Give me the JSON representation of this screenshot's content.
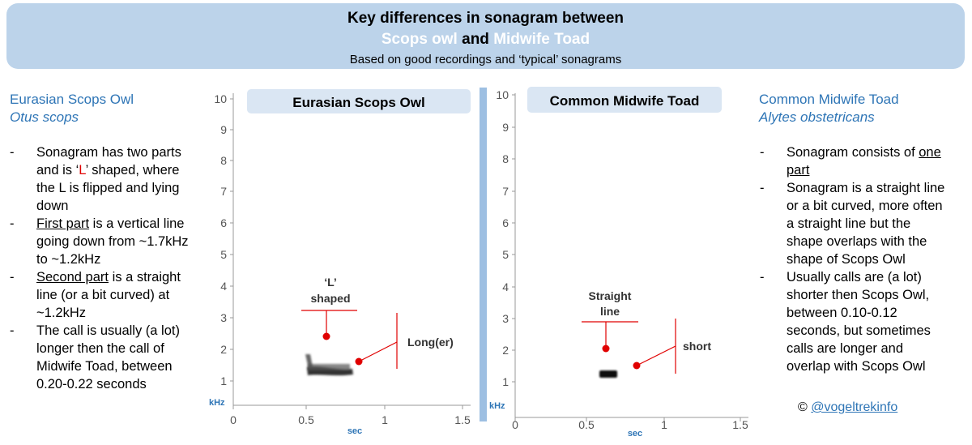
{
  "header": {
    "title": "Key differences in sonagram between",
    "species_a": "Scops owl",
    "conjunction": "and",
    "species_b": "Midwife Toad",
    "subtitle": "Based on good recordings and ‘typical’ sonagrams"
  },
  "left": {
    "name": "Eurasian Scops Owl",
    "latin": "Otus scops",
    "bullets": [
      {
        "dash": "-",
        "lines": [
          "Sonagram has two parts",
          "and is ‘L’ shaped, where",
          "the L is flipped and lying",
          "down"
        ]
      },
      {
        "dash": "-",
        "lines": [
          "First part is a vertical line",
          "going down from ~1.7kHz",
          "to ~1.2kHz"
        ]
      },
      {
        "dash": "-",
        "lines": [
          "Second part is a straight",
          "line (or a bit curved) at",
          "~1.2kHz"
        ]
      },
      {
        "dash": "-",
        "lines": [
          "The call is usually (a lot)",
          "longer then the call of",
          "Midwife Toad, between",
          "0.20-0.22 seconds"
        ]
      }
    ],
    "inline": {
      "l_letter": "L",
      "first_part": "First part",
      "second_part": "Second part"
    }
  },
  "right": {
    "name": "Common Midwife Toad",
    "latin": "Alytes obstetricans",
    "bullets": [
      {
        "dash": "-",
        "lines": [
          "Sonagram consists of one",
          "part"
        ]
      },
      {
        "dash": "-",
        "lines": [
          "Sonagram is a straight line",
          "or a bit curved, more often",
          "a straight line but the",
          "shape overlaps with the",
          "shape of Scops Owl"
        ]
      },
      {
        "dash": "-",
        "lines": [
          "Usually calls are (a lot)",
          "shorter then Scops Owl,",
          "between 0.10-0.12",
          "seconds, but sometimes",
          "calls are longer and",
          "overlap with Scops Owl"
        ]
      }
    ],
    "inline": {
      "one_part": "one part"
    }
  },
  "credit": {
    "symbol": "©",
    "handle": "@vogeltrekinfo"
  },
  "charts": [
    {
      "panel_title": "Eurasian Scops Owl",
      "y_ticks": [
        "1",
        "2",
        "3",
        "4",
        "5",
        "6",
        "7",
        "8",
        "9",
        "10"
      ],
      "y_unit": "kHz",
      "x_ticks": [
        "0",
        "0.5",
        "1",
        "1.5"
      ],
      "x_unit": "sec",
      "annotation_shape": [
        "‘L’",
        "shaped"
      ],
      "annotation_length": "Long(er)"
    },
    {
      "panel_title": "Common Midwife Toad",
      "y_ticks": [
        "1",
        "2",
        "3",
        "4",
        "5",
        "6",
        "7",
        "8",
        "9",
        "10"
      ],
      "y_unit": "kHz",
      "x_ticks": [
        "0",
        "0.5",
        "1",
        "1.5"
      ],
      "x_unit": "sec",
      "annotation_shape": [
        "Straight",
        "line"
      ],
      "annotation_length": "short"
    }
  ],
  "colors": {
    "banner": "#bcd3ea",
    "accent": "#2e75b6",
    "marker": "#e00000",
    "divider": "#9dbfe2"
  }
}
